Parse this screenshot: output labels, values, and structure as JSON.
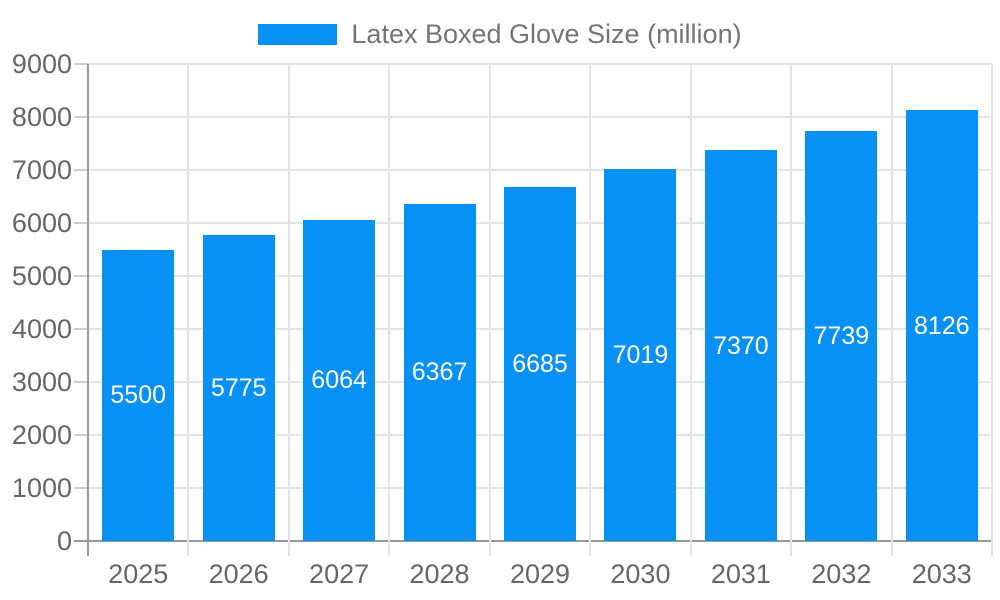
{
  "chart_data": {
    "type": "bar",
    "categories": [
      "2025",
      "2026",
      "2027",
      "2028",
      "2029",
      "2030",
      "2031",
      "2032",
      "2033"
    ],
    "series": [
      {
        "name": "Latex Boxed Glove Size (million)",
        "values": [
          5500,
          5775,
          6064,
          6367,
          6685,
          7019,
          7370,
          7739,
          8126
        ]
      }
    ],
    "title": "",
    "xlabel": "",
    "ylabel": "",
    "ylim": [
      0,
      9000
    ],
    "yticks": [
      0,
      1000,
      2000,
      3000,
      4000,
      5000,
      6000,
      7000,
      8000,
      9000
    ],
    "grid": true,
    "legend_position": "top",
    "value_labels": "inside-center"
  },
  "colors": {
    "bar": "#0791f5",
    "bar_label_text": "#ffffff",
    "grid_line": "#e3e3e3",
    "axis_line": "#999999",
    "tick_mark": "#cccccc",
    "tick_text": "#666666",
    "legend_text": "#757575",
    "background": "#ffffff"
  }
}
